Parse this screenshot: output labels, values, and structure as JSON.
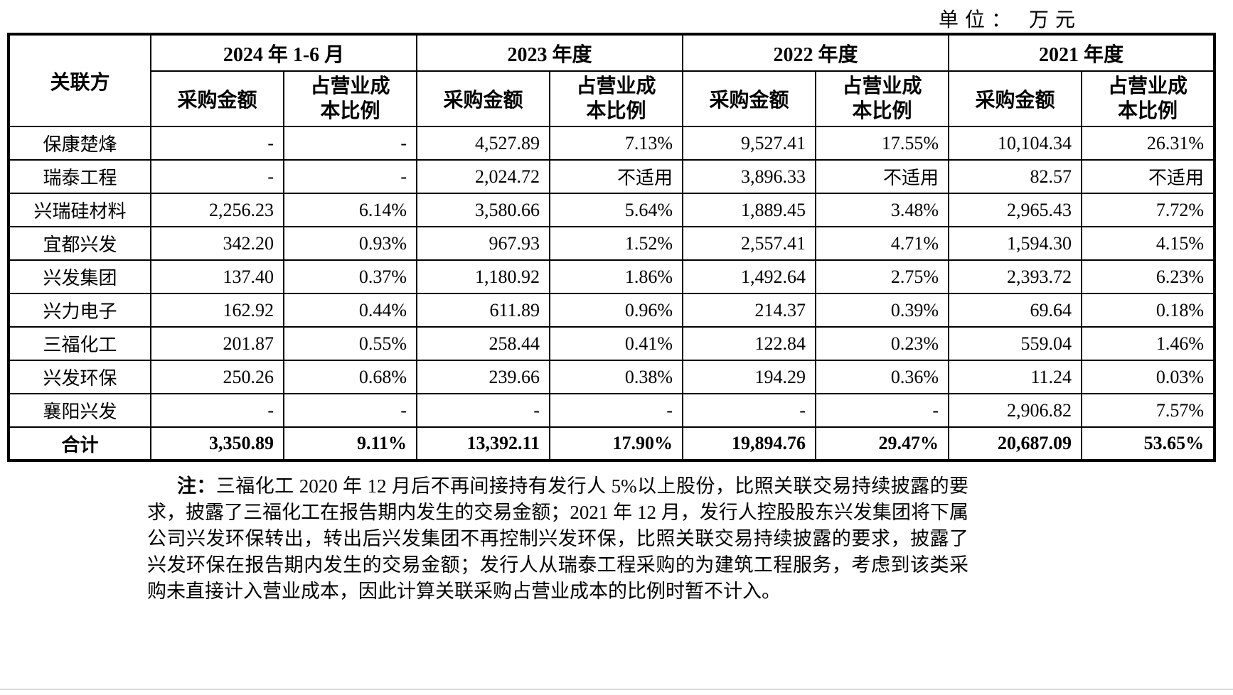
{
  "unit_label": "单位： 万元",
  "table": {
    "corner_header": "关联方",
    "groups": [
      {
        "period": "2024 年 1-6 月",
        "amount_header": "采购金额",
        "ratio_header": "占营业成\n本比例"
      },
      {
        "period": "2023 年度",
        "amount_header": "采购金额",
        "ratio_header": "占营业成\n本比例"
      },
      {
        "period": "2022 年度",
        "amount_header": "采购金额",
        "ratio_header": "占营业成\n本比例"
      },
      {
        "period": "2021 年度",
        "amount_header": "采购金额",
        "ratio_header": "占营业成\n本比例"
      }
    ],
    "rows": [
      {
        "name": "保康楚烽",
        "values": [
          "-",
          "-",
          "4,527.89",
          "7.13%",
          "9,527.41",
          "17.55%",
          "10,104.34",
          "26.31%"
        ]
      },
      {
        "name": "瑞泰工程",
        "values": [
          "-",
          "-",
          "2,024.72",
          "不适用",
          "3,896.33",
          "不适用",
          "82.57",
          "不适用"
        ]
      },
      {
        "name": "兴瑞硅材料",
        "values": [
          "2,256.23",
          "6.14%",
          "3,580.66",
          "5.64%",
          "1,889.45",
          "3.48%",
          "2,965.43",
          "7.72%"
        ]
      },
      {
        "name": "宜都兴发",
        "values": [
          "342.20",
          "0.93%",
          "967.93",
          "1.52%",
          "2,557.41",
          "4.71%",
          "1,594.30",
          "4.15%"
        ]
      },
      {
        "name": "兴发集团",
        "values": [
          "137.40",
          "0.37%",
          "1,180.92",
          "1.86%",
          "1,492.64",
          "2.75%",
          "2,393.72",
          "6.23%"
        ]
      },
      {
        "name": "兴力电子",
        "values": [
          "162.92",
          "0.44%",
          "611.89",
          "0.96%",
          "214.37",
          "0.39%",
          "69.64",
          "0.18%"
        ]
      },
      {
        "name": "三福化工",
        "values": [
          "201.87",
          "0.55%",
          "258.44",
          "0.41%",
          "122.84",
          "0.23%",
          "559.04",
          "1.46%"
        ]
      },
      {
        "name": "兴发环保",
        "values": [
          "250.26",
          "0.68%",
          "239.66",
          "0.38%",
          "194.29",
          "0.36%",
          "11.24",
          "0.03%"
        ]
      },
      {
        "name": "襄阳兴发",
        "values": [
          "-",
          "-",
          "-",
          "-",
          "-",
          "-",
          "2,906.82",
          "7.57%"
        ]
      }
    ],
    "total": {
      "name": "合计",
      "values": [
        "3,350.89",
        "9.11%",
        "13,392.11",
        "17.90%",
        "19,894.76",
        "29.47%",
        "20,687.09",
        "53.65%"
      ]
    }
  },
  "note": {
    "label": "注：",
    "text": "三福化工 2020 年 12 月后不再间接持有发行人 5%以上股份，比照关联交易持续披露的要求，披露了三福化工在报告期内发生的交易金额；2021 年 12 月，发行人控股股东兴发集团将下属公司兴发环保转出，转出后兴发集团不再控制兴发环保，比照关联交易持续披露的要求，披露了兴发环保在报告期内发生的交易金额；发行人从瑞泰工程采购的为建筑工程服务，考虑到该类采购未直接计入营业成本，因此计算关联采购占营业成本的比例时暂不计入。"
  }
}
